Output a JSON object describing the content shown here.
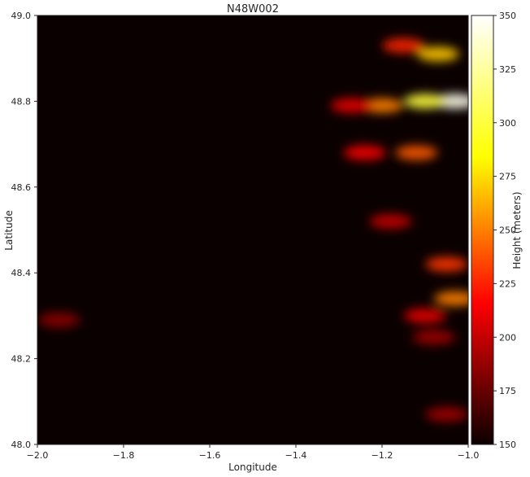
{
  "chart_data": {
    "type": "heatmap",
    "title": "N48W002",
    "xlabel": "Longitude",
    "ylabel": "Latitude",
    "xlim": [
      -2.0,
      -1.0
    ],
    "ylim": [
      48.0,
      49.0
    ],
    "x_ticks": [
      -2.0,
      -1.8,
      -1.6,
      -1.4,
      -1.2,
      -1.0
    ],
    "x_tick_labels": [
      "−2.0",
      "−1.8",
      "−1.6",
      "−1.4",
      "−1.2",
      "−1.0"
    ],
    "y_ticks": [
      48.0,
      48.2,
      48.4,
      48.6,
      48.8,
      49.0
    ],
    "y_tick_labels": [
      "48.0",
      "48.2",
      "48.4",
      "48.6",
      "48.8",
      "49.0"
    ],
    "colormap": "hot",
    "background_color": "#0b0000",
    "colorbar": {
      "label": "Height (meters)",
      "range": [
        150,
        350
      ],
      "ticks": [
        150,
        175,
        200,
        225,
        250,
        275,
        300,
        325,
        350
      ]
    },
    "features": [
      {
        "lon": -1.07,
        "lat": 48.91,
        "height": 270
      },
      {
        "lon": -1.15,
        "lat": 48.93,
        "height": 225
      },
      {
        "lon": -1.03,
        "lat": 48.8,
        "height": 345
      },
      {
        "lon": -1.1,
        "lat": 48.8,
        "height": 300
      },
      {
        "lon": -1.2,
        "lat": 48.79,
        "height": 250
      },
      {
        "lon": -1.27,
        "lat": 48.79,
        "height": 210
      },
      {
        "lon": -1.12,
        "lat": 48.68,
        "height": 240
      },
      {
        "lon": -1.24,
        "lat": 48.68,
        "height": 215
      },
      {
        "lon": -1.18,
        "lat": 48.52,
        "height": 200
      },
      {
        "lon": -1.05,
        "lat": 48.42,
        "height": 230
      },
      {
        "lon": -1.03,
        "lat": 48.34,
        "height": 250
      },
      {
        "lon": -1.1,
        "lat": 48.3,
        "height": 210
      },
      {
        "lon": -1.08,
        "lat": 48.25,
        "height": 190
      },
      {
        "lon": -1.05,
        "lat": 48.07,
        "height": 190
      },
      {
        "lon": -1.95,
        "lat": 48.29,
        "height": 185
      }
    ]
  }
}
